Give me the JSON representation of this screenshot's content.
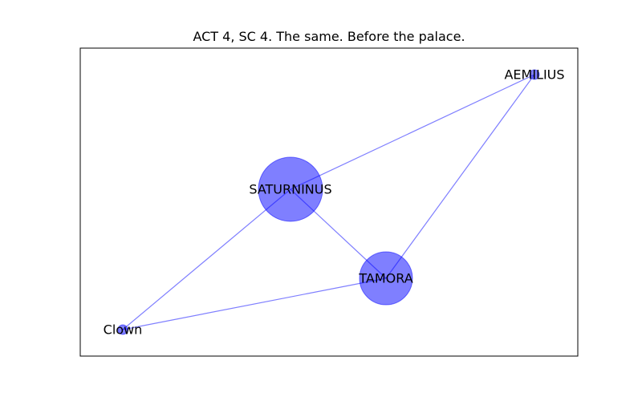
{
  "title": "ACT 4, SC 4. The same. Before the palace.",
  "colors": {
    "node_fill": "#0000ff",
    "edge": "#0000ff",
    "frame": "#000000"
  },
  "graph": {
    "nodes": [
      {
        "id": "SATURNINUS",
        "label": "SATURNINUS",
        "weight": 4
      },
      {
        "id": "TAMORA",
        "label": "TAMORA",
        "weight": 3
      },
      {
        "id": "AEMILIUS",
        "label": "AEMILIUS",
        "weight": 1
      },
      {
        "id": "Clown",
        "label": "Clown",
        "weight": 1
      }
    ],
    "edges": [
      {
        "source": "SATURNINUS",
        "target": "AEMILIUS"
      },
      {
        "source": "SATURNINUS",
        "target": "TAMORA"
      },
      {
        "source": "SATURNINUS",
        "target": "Clown"
      },
      {
        "source": "TAMORA",
        "target": "AEMILIUS"
      },
      {
        "source": "TAMORA",
        "target": "Clown"
      }
    ]
  }
}
